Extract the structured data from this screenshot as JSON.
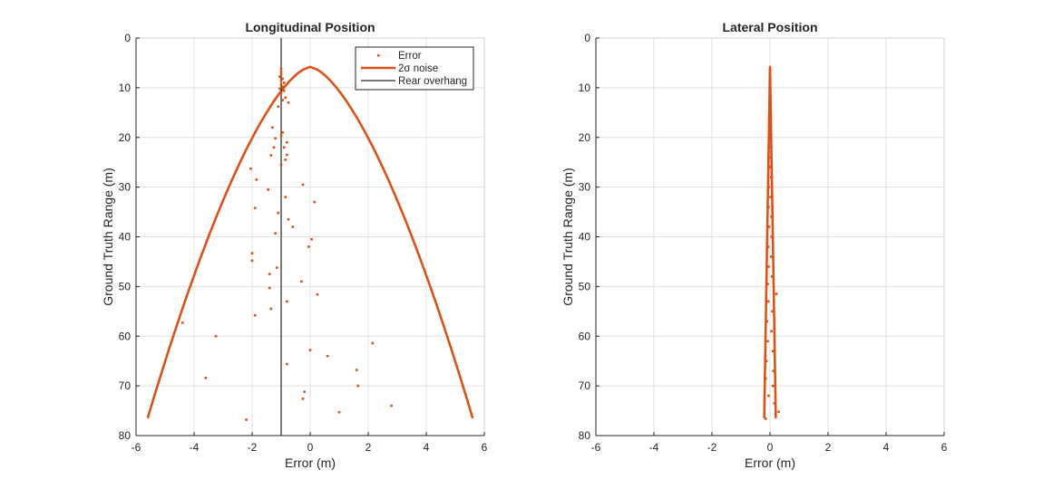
{
  "chart_data": [
    {
      "type": "scatter",
      "title": "Longitudinal Position",
      "xlabel": "Error (m)",
      "ylabel": "Ground Truth Range (m)",
      "xlim": [
        -6,
        6
      ],
      "ylim": [
        0,
        80
      ],
      "y_reversed": true,
      "xticks": [
        "-6",
        "-4",
        "-2",
        "0",
        "2",
        "4",
        "6"
      ],
      "yticks": [
        "0",
        "10",
        "20",
        "30",
        "40",
        "50",
        "60",
        "70",
        "80"
      ],
      "grid": true,
      "legend_position": "top-right",
      "legend": [
        "Error",
        "2σ noise",
        "Rear overhang"
      ],
      "colors": {
        "error": "#d95319",
        "noise": "#d95319",
        "overhang": "#262626"
      },
      "series": [
        {
          "name": "Error",
          "points": [
            [
              -1.0,
              6.2
            ],
            [
              -1.0,
              6.8
            ],
            [
              -1.0,
              7.3
            ],
            [
              -1.05,
              7.8
            ],
            [
              -0.95,
              8.2
            ],
            [
              -1.0,
              8.6
            ],
            [
              -0.9,
              9.0
            ],
            [
              -1.0,
              9.4
            ],
            [
              -0.95,
              9.8
            ],
            [
              -1.05,
              10.2
            ],
            [
              -0.9,
              10.6
            ],
            [
              -1.0,
              11.0
            ],
            [
              -1.1,
              11.5
            ],
            [
              -0.85,
              12.0
            ],
            [
              -0.95,
              12.5
            ],
            [
              -0.75,
              13.0
            ],
            [
              -1.1,
              13.8
            ],
            [
              -1.3,
              18.0
            ],
            [
              -0.95,
              19.0
            ],
            [
              -1.0,
              19.6
            ],
            [
              -1.2,
              20.2
            ],
            [
              -0.8,
              21.0
            ],
            [
              -0.9,
              22.0
            ],
            [
              -1.25,
              22.0
            ],
            [
              -0.8,
              23.5
            ],
            [
              -1.35,
              23.6
            ],
            [
              -0.85,
              24.5
            ],
            [
              -1.0,
              25.5
            ],
            [
              -2.05,
              26.3
            ],
            [
              -1.85,
              28.5
            ],
            [
              -0.25,
              29.5
            ],
            [
              -1.45,
              30.5
            ],
            [
              -0.85,
              32.0
            ],
            [
              0.15,
              33.0
            ],
            [
              -1.9,
              34.2
            ],
            [
              -1.1,
              35.2
            ],
            [
              -0.75,
              36.5
            ],
            [
              -0.6,
              38.0
            ],
            [
              -1.2,
              39.3
            ],
            [
              0.05,
              40.5
            ],
            [
              -0.05,
              42.0
            ],
            [
              -2.0,
              43.3
            ],
            [
              -2.0,
              44.8
            ],
            [
              -1.15,
              46.2
            ],
            [
              -1.4,
              47.5
            ],
            [
              -0.3,
              49.0
            ],
            [
              -1.4,
              50.3
            ],
            [
              0.25,
              51.6
            ],
            [
              -0.8,
              53.0
            ],
            [
              -1.35,
              54.5
            ],
            [
              -1.9,
              55.8
            ],
            [
              -4.4,
              57.3
            ],
            [
              -3.25,
              60.0
            ],
            [
              2.15,
              61.4
            ],
            [
              0.0,
              62.8
            ],
            [
              0.6,
              64.0
            ],
            [
              -0.8,
              65.6
            ],
            [
              1.6,
              66.8
            ],
            [
              -3.6,
              68.4
            ],
            [
              1.65,
              70.0
            ],
            [
              -0.2,
              71.2
            ],
            [
              -0.25,
              72.6
            ],
            [
              2.8,
              74.0
            ],
            [
              1.0,
              75.3
            ],
            [
              -2.2,
              76.8
            ]
          ]
        },
        {
          "name": "2σ noise",
          "range": [
            5.8,
            76.5
          ],
          "half_width_at_start": 0.0,
          "half_width_at_end": 5.6,
          "note_shape": "power"
        },
        {
          "name": "Rear overhang",
          "x": -1.0
        }
      ]
    },
    {
      "type": "scatter",
      "title": "Lateral Position",
      "xlabel": "Error (m)",
      "ylabel": "Ground Truth Range (m)",
      "xlim": [
        -6,
        6
      ],
      "ylim": [
        0,
        80
      ],
      "y_reversed": true,
      "xticks": [
        "-6",
        "-4",
        "-2",
        "0",
        "2",
        "4",
        "6"
      ],
      "yticks": [
        "0",
        "10",
        "20",
        "30",
        "40",
        "50",
        "60",
        "70",
        "80"
      ],
      "grid": true,
      "colors": {
        "error": "#d95319",
        "noise": "#d95319"
      },
      "series": [
        {
          "name": "Error",
          "points": [
            [
              0.0,
              6.5
            ],
            [
              0.01,
              8.0
            ],
            [
              -0.01,
              10.0
            ],
            [
              0.02,
              12.0
            ],
            [
              0.0,
              14.0
            ],
            [
              -0.02,
              16.0
            ],
            [
              0.01,
              18.0
            ],
            [
              0.02,
              20.0
            ],
            [
              -0.03,
              22.0
            ],
            [
              0.03,
              24.0
            ],
            [
              -0.02,
              26.0
            ],
            [
              0.04,
              28.0
            ],
            [
              -0.04,
              30.0
            ],
            [
              0.02,
              32.0
            ],
            [
              -0.05,
              34.0
            ],
            [
              0.05,
              36.0
            ],
            [
              -0.03,
              38.0
            ],
            [
              0.06,
              40.0
            ],
            [
              -0.06,
              42.0
            ],
            [
              0.04,
              44.0
            ],
            [
              -0.05,
              46.0
            ],
            [
              0.07,
              48.0
            ],
            [
              -0.08,
              49.5
            ],
            [
              0.22,
              51.5
            ],
            [
              -0.06,
              53.0
            ],
            [
              0.08,
              55.0
            ],
            [
              -0.1,
              57.0
            ],
            [
              0.05,
              59.0
            ],
            [
              -0.08,
              61.0
            ],
            [
              0.1,
              63.0
            ],
            [
              -0.12,
              65.0
            ],
            [
              0.12,
              67.0
            ],
            [
              -0.15,
              68.5
            ],
            [
              0.1,
              70.0
            ],
            [
              -0.05,
              72.0
            ],
            [
              0.15,
              73.5
            ],
            [
              0.3,
              75.2
            ],
            [
              -0.15,
              76.6
            ]
          ]
        },
        {
          "name": "2σ noise",
          "range": [
            5.8,
            76.5
          ],
          "half_width_at_start": 0.0,
          "half_width_at_end": 0.2,
          "note_shape": "linear"
        }
      ]
    }
  ]
}
